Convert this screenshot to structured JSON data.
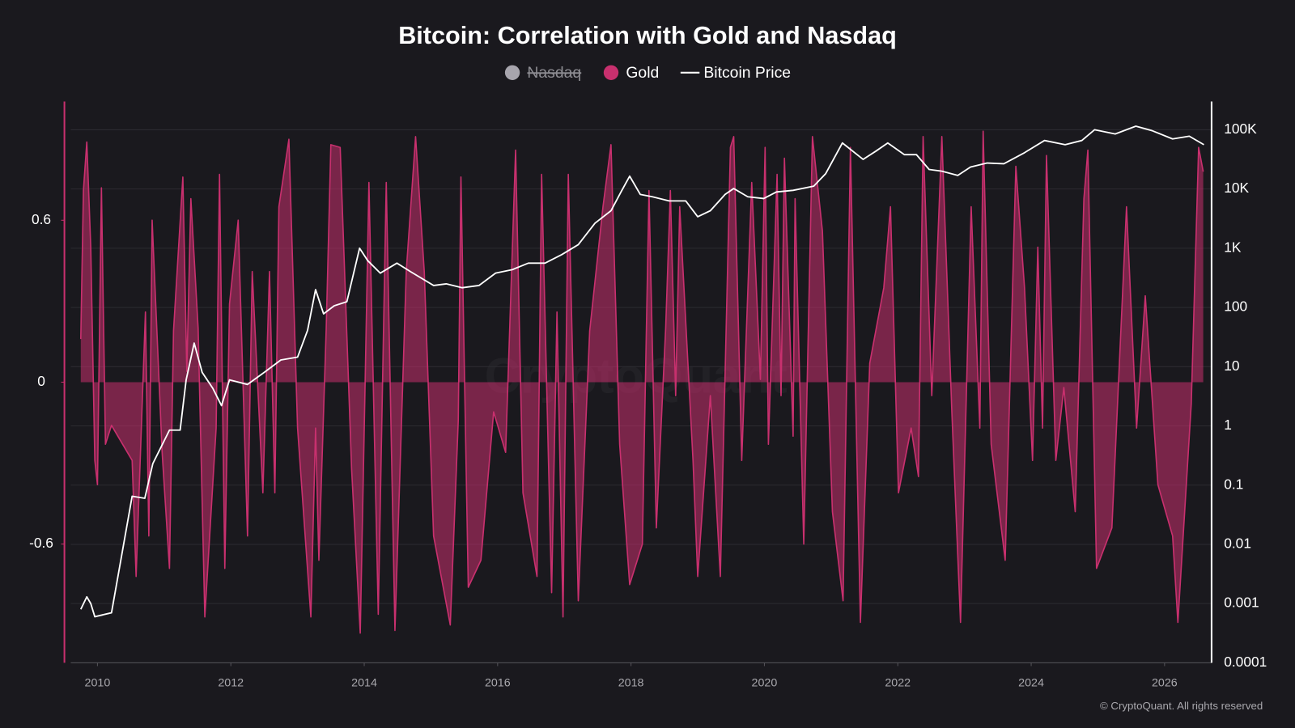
{
  "chart_data": {
    "type": "area-line",
    "title": "Bitcoin: Correlation with Gold and Nasdaq",
    "watermark": "CryptoQuant",
    "copyright": "© CryptoQuant. All rights reserved",
    "xlim": [
      2009.6,
      2026.7
    ],
    "xticks": [
      2010,
      2012,
      2014,
      2016,
      2018,
      2020,
      2022,
      2024,
      2026
    ],
    "ylim": [
      -1.04,
      1.04
    ],
    "yticks": [
      -0.6,
      0,
      0.6
    ],
    "y2lim": [
      0.0001,
      300000
    ],
    "y2ticks": [
      0.0001,
      0.001,
      0.01,
      0.1,
      1,
      10,
      100,
      {
        "value": 1000,
        "label": "1K"
      },
      {
        "value": 10000,
        "label": "10K"
      },
      {
        "value": 100000,
        "label": "100K"
      }
    ],
    "y2scale": "log",
    "grid": true,
    "series": [
      {
        "name": "Nasdaq",
        "color": "#9e9ca4",
        "visible": false
      },
      {
        "name": "Gold",
        "color": "#c8306e",
        "visible": true,
        "kind": "area",
        "x": [
          2009.75,
          2009.79,
          2009.84,
          2009.9,
          2009.96,
          2010.0,
          2010.06,
          2010.12,
          2010.21,
          2010.52,
          2010.58,
          2010.72,
          2010.77,
          2010.82,
          2010.97,
          2011.08,
          2011.14,
          2011.28,
          2011.34,
          2011.4,
          2011.51,
          2011.61,
          2011.78,
          2011.83,
          2011.91,
          2011.98,
          2012.11,
          2012.25,
          2012.32,
          2012.48,
          2012.58,
          2012.66,
          2012.72,
          2012.87,
          2013.0,
          2013.2,
          2013.27,
          2013.32,
          2013.43,
          2013.5,
          2013.64,
          2013.81,
          2013.94,
          2014.01,
          2014.07,
          2014.21,
          2014.33,
          2014.46,
          2014.63,
          2014.77,
          2014.9,
          2015.04,
          2015.29,
          2015.41,
          2015.45,
          2015.56,
          2015.75,
          2015.94,
          2016.12,
          2016.27,
          2016.38,
          2016.59,
          2016.66,
          2016.81,
          2016.89,
          2016.98,
          2017.06,
          2017.21,
          2017.38,
          2017.58,
          2017.7,
          2017.83,
          2017.98,
          2018.17,
          2018.27,
          2018.38,
          2018.52,
          2018.59,
          2018.67,
          2018.73,
          2018.93,
          2019.0,
          2019.19,
          2019.34,
          2019.49,
          2019.54,
          2019.66,
          2019.81,
          2019.94,
          2020.01,
          2020.06,
          2020.19,
          2020.25,
          2020.3,
          2020.43,
          2020.46,
          2020.59,
          2020.72,
          2020.87,
          2021.02,
          2021.18,
          2021.29,
          2021.44,
          2021.58,
          2021.79,
          2021.89,
          2022.01,
          2022.2,
          2022.31,
          2022.38,
          2022.51,
          2022.66,
          2022.81,
          2022.94,
          2023.1,
          2023.23,
          2023.28,
          2023.4,
          2023.61,
          2023.77,
          2023.9,
          2024.02,
          2024.1,
          2024.17,
          2024.23,
          2024.37,
          2024.49,
          2024.66,
          2024.79,
          2024.85,
          2024.98,
          2025.21,
          2025.43,
          2025.58,
          2025.71,
          2025.9,
          2026.12,
          2026.2,
          2026.4,
          2026.51,
          2026.58
        ],
        "values": [
          0.16,
          0.71,
          0.89,
          0.5,
          -0.29,
          -0.38,
          0.72,
          -0.23,
          -0.16,
          -0.29,
          -0.72,
          0.26,
          -0.57,
          0.6,
          -0.26,
          -0.69,
          0.19,
          0.76,
          0.04,
          0.68,
          0.2,
          -0.87,
          -0.17,
          0.77,
          -0.69,
          0.29,
          0.6,
          -0.57,
          0.41,
          -0.41,
          0.41,
          -0.41,
          0.65,
          0.9,
          -0.17,
          -0.87,
          -0.17,
          -0.66,
          0.2,
          0.88,
          0.87,
          -0.32,
          -0.93,
          -0.05,
          0.74,
          -0.86,
          0.74,
          -0.92,
          0.41,
          0.91,
          0.41,
          -0.57,
          -0.9,
          -0.14,
          0.76,
          -0.76,
          -0.66,
          -0.11,
          -0.26,
          0.86,
          -0.41,
          -0.72,
          0.77,
          -0.78,
          0.26,
          -0.87,
          0.77,
          -0.81,
          0.19,
          0.65,
          0.88,
          -0.23,
          -0.75,
          -0.6,
          0.71,
          -0.54,
          0.2,
          0.71,
          -0.05,
          0.65,
          -0.29,
          -0.72,
          -0.05,
          -0.72,
          0.87,
          0.91,
          -0.29,
          0.74,
          0.01,
          0.87,
          -0.23,
          0.77,
          -0.05,
          0.83,
          -0.2,
          0.68,
          -0.6,
          0.91,
          0.56,
          -0.48,
          -0.81,
          0.87,
          -0.89,
          0.07,
          0.35,
          0.65,
          -0.41,
          -0.17,
          -0.35,
          0.91,
          -0.05,
          0.91,
          -0.11,
          -0.89,
          0.65,
          -0.17,
          0.93,
          -0.23,
          -0.66,
          0.8,
          0.35,
          -0.29,
          0.5,
          -0.17,
          0.84,
          -0.29,
          -0.02,
          -0.48,
          0.68,
          0.86,
          -0.69,
          -0.54,
          0.65,
          -0.17,
          0.32,
          -0.38,
          -0.57,
          -0.89,
          -0.08,
          0.87,
          0.78
        ]
      },
      {
        "name": "Bitcoin Price",
        "color": "#ffffff",
        "visible": true,
        "kind": "line",
        "axis": "y2",
        "x": [
          2009.75,
          2009.84,
          2009.9,
          2009.96,
          2010.21,
          2010.52,
          2010.71,
          2010.83,
          2011.08,
          2011.24,
          2011.33,
          2011.45,
          2011.57,
          2011.73,
          2011.86,
          2011.98,
          2012.25,
          2012.5,
          2012.75,
          2013.0,
          2013.15,
          2013.27,
          2013.39,
          2013.55,
          2013.74,
          2013.93,
          2014.05,
          2014.24,
          2014.49,
          2014.73,
          2015.04,
          2015.23,
          2015.47,
          2015.72,
          2015.97,
          2016.22,
          2016.46,
          2016.71,
          2016.96,
          2017.21,
          2017.46,
          2017.7,
          2017.85,
          2017.98,
          2018.14,
          2018.32,
          2018.57,
          2018.82,
          2019.0,
          2019.19,
          2019.41,
          2019.54,
          2019.75,
          2019.99,
          2020.18,
          2020.43,
          2020.74,
          2020.92,
          2021.17,
          2021.48,
          2021.67,
          2021.85,
          2022.1,
          2022.28,
          2022.47,
          2022.66,
          2022.9,
          2023.09,
          2023.34,
          2023.59,
          2023.9,
          2024.2,
          2024.51,
          2024.76,
          2024.95,
          2025.26,
          2025.57,
          2025.81,
          2026.12,
          2026.37,
          2026.59
        ],
        "values": [
          0.0008,
          0.0013,
          0.001,
          0.0006,
          0.0007,
          0.065,
          0.06,
          0.23,
          0.85,
          0.85,
          6,
          25,
          8,
          4.3,
          2.2,
          6,
          5,
          8,
          13,
          14.5,
          41,
          200,
          78,
          107,
          125,
          1000,
          620,
          380,
          560,
          380,
          235,
          250,
          215,
          235,
          380,
          435,
          560,
          560,
          780,
          1150,
          2650,
          4300,
          8900,
          16500,
          8100,
          7400,
          6300,
          6300,
          3400,
          4300,
          8100,
          10200,
          7400,
          6900,
          8900,
          9500,
          11200,
          18200,
          60000,
          31600,
          43500,
          60000,
          38000,
          38000,
          21400,
          20000,
          17000,
          23500,
          27500,
          26700,
          41000,
          66000,
          56000,
          66000,
          100000,
          85000,
          115000,
          97000,
          70000,
          78000,
          56000
        ]
      }
    ]
  }
}
